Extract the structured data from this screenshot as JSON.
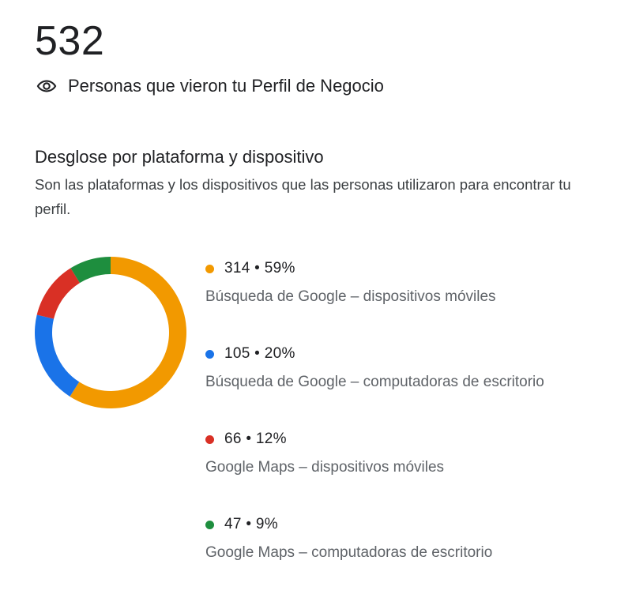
{
  "summary": {
    "total": "532",
    "label": "Personas que vieron tu Perfil de Negocio",
    "icon": "eye-icon"
  },
  "breakdown": {
    "title": "Desglose por plataforma y dispositivo",
    "description": "Son las plataformas y los dispositivos que las personas utilizaron para encontrar tu perfil."
  },
  "chart_data": {
    "type": "pie",
    "total": 532,
    "slices": [
      {
        "value": 314,
        "percent": 59,
        "value_text": "314 • 59%",
        "label": "Búsqueda de Google – dispositivos móviles",
        "color": "#f29900"
      },
      {
        "value": 105,
        "percent": 20,
        "value_text": "105 • 20%",
        "label": "Búsqueda de Google – computadoras de escritorio",
        "color": "#1a73e8"
      },
      {
        "value": 66,
        "percent": 12,
        "value_text": "66 • 12%",
        "label": "Google Maps – dispositivos móviles",
        "color": "#d93025"
      },
      {
        "value": 47,
        "percent": 9,
        "value_text": "47 • 9%",
        "label": "Google Maps – computadoras de escritorio",
        "color": "#1e8e3e"
      }
    ],
    "legend_position": "right"
  }
}
